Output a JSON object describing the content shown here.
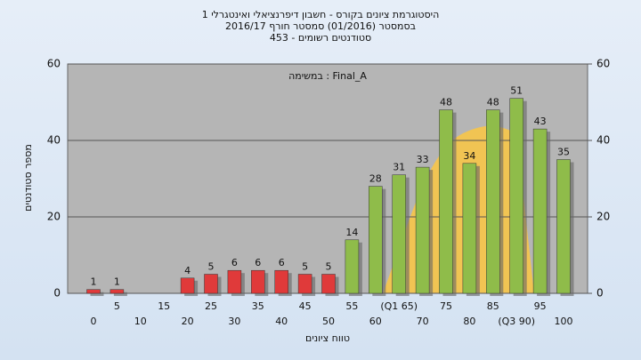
{
  "chart_data": {
    "type": "bar",
    "title": "היסטוגרמת ציונים בקורס - חשבון דיפרנציאלי ואינטגרלי 1",
    "subtitle": "בסמסטר  (01/2016)  סמסטר חורף 2016/17",
    "subtitle2": "סטודנטים רשומים - 453",
    "annotation": "במשימה : Final_A",
    "x_label": "טווח ציונים",
    "y_label": "מספר סטודנטים",
    "categories": [
      "0",
      "5",
      "10",
      "15",
      "20",
      "25",
      "30",
      "35",
      "40",
      "45",
      "50",
      "55",
      "60",
      "(Q1 65)",
      "70",
      "75",
      "80",
      "85",
      "(Q3 90)",
      "95",
      "100"
    ],
    "values": [
      1,
      1,
      0,
      0,
      4,
      5,
      6,
      6,
      6,
      5,
      5,
      14,
      28,
      31,
      33,
      48,
      34,
      48,
      51,
      43,
      35
    ],
    "bar_colors": [
      "#e03a3a",
      "#e03a3a",
      "#e03a3a",
      "#e03a3a",
      "#e03a3a",
      "#e03a3a",
      "#e03a3a",
      "#e03a3a",
      "#e03a3a",
      "#e03a3a",
      "#e03a3a",
      "#8fbc4a",
      "#8fbc4a",
      "#8fbc4a",
      "#8fbc4a",
      "#8fbc4a",
      "#8fbc4a",
      "#8fbc4a",
      "#8fbc4a",
      "#8fbc4a",
      "#8fbc4a"
    ],
    "ylim": [
      0,
      60
    ],
    "yticks": [
      0,
      20,
      40,
      60
    ],
    "y2lim": [
      0,
      60
    ],
    "y2ticks": [
      0,
      20,
      40,
      60
    ],
    "grid": true
  }
}
